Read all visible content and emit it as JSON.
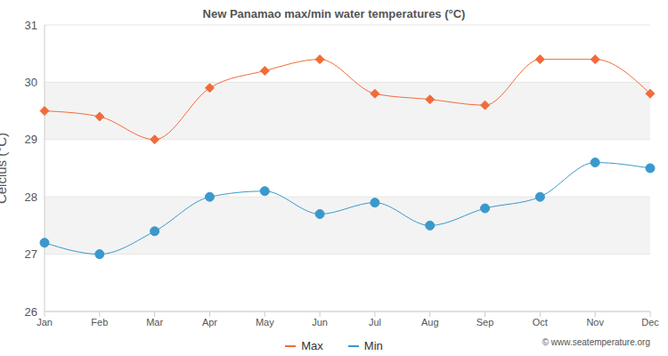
{
  "chart_data": {
    "type": "line",
    "title": "New Panamao max/min water temperatures (°C)",
    "y_label": "Celcius (°C)",
    "categories": [
      "Jan",
      "Feb",
      "Mar",
      "Apr",
      "May",
      "Jun",
      "Jul",
      "Aug",
      "Sep",
      "Oct",
      "Nov",
      "Dec"
    ],
    "series": [
      {
        "name": "Max",
        "color": "#f26a3a",
        "marker": "diamond",
        "values": [
          29.5,
          29.4,
          29.0,
          29.9,
          30.2,
          30.4,
          29.8,
          29.7,
          29.6,
          30.4,
          30.4,
          29.8
        ]
      },
      {
        "name": "Min",
        "color": "#3a98cc",
        "marker": "circle",
        "values": [
          27.2,
          27.0,
          27.4,
          28.0,
          28.1,
          27.7,
          27.9,
          27.5,
          27.8,
          28.0,
          28.6,
          28.5
        ]
      }
    ],
    "ylim": [
      26,
      31
    ],
    "yticks": [
      26,
      27,
      28,
      29,
      30,
      31
    ],
    "grid": true,
    "legend": "bottom",
    "annotations": [
      "© www.seatemperature.org"
    ]
  }
}
